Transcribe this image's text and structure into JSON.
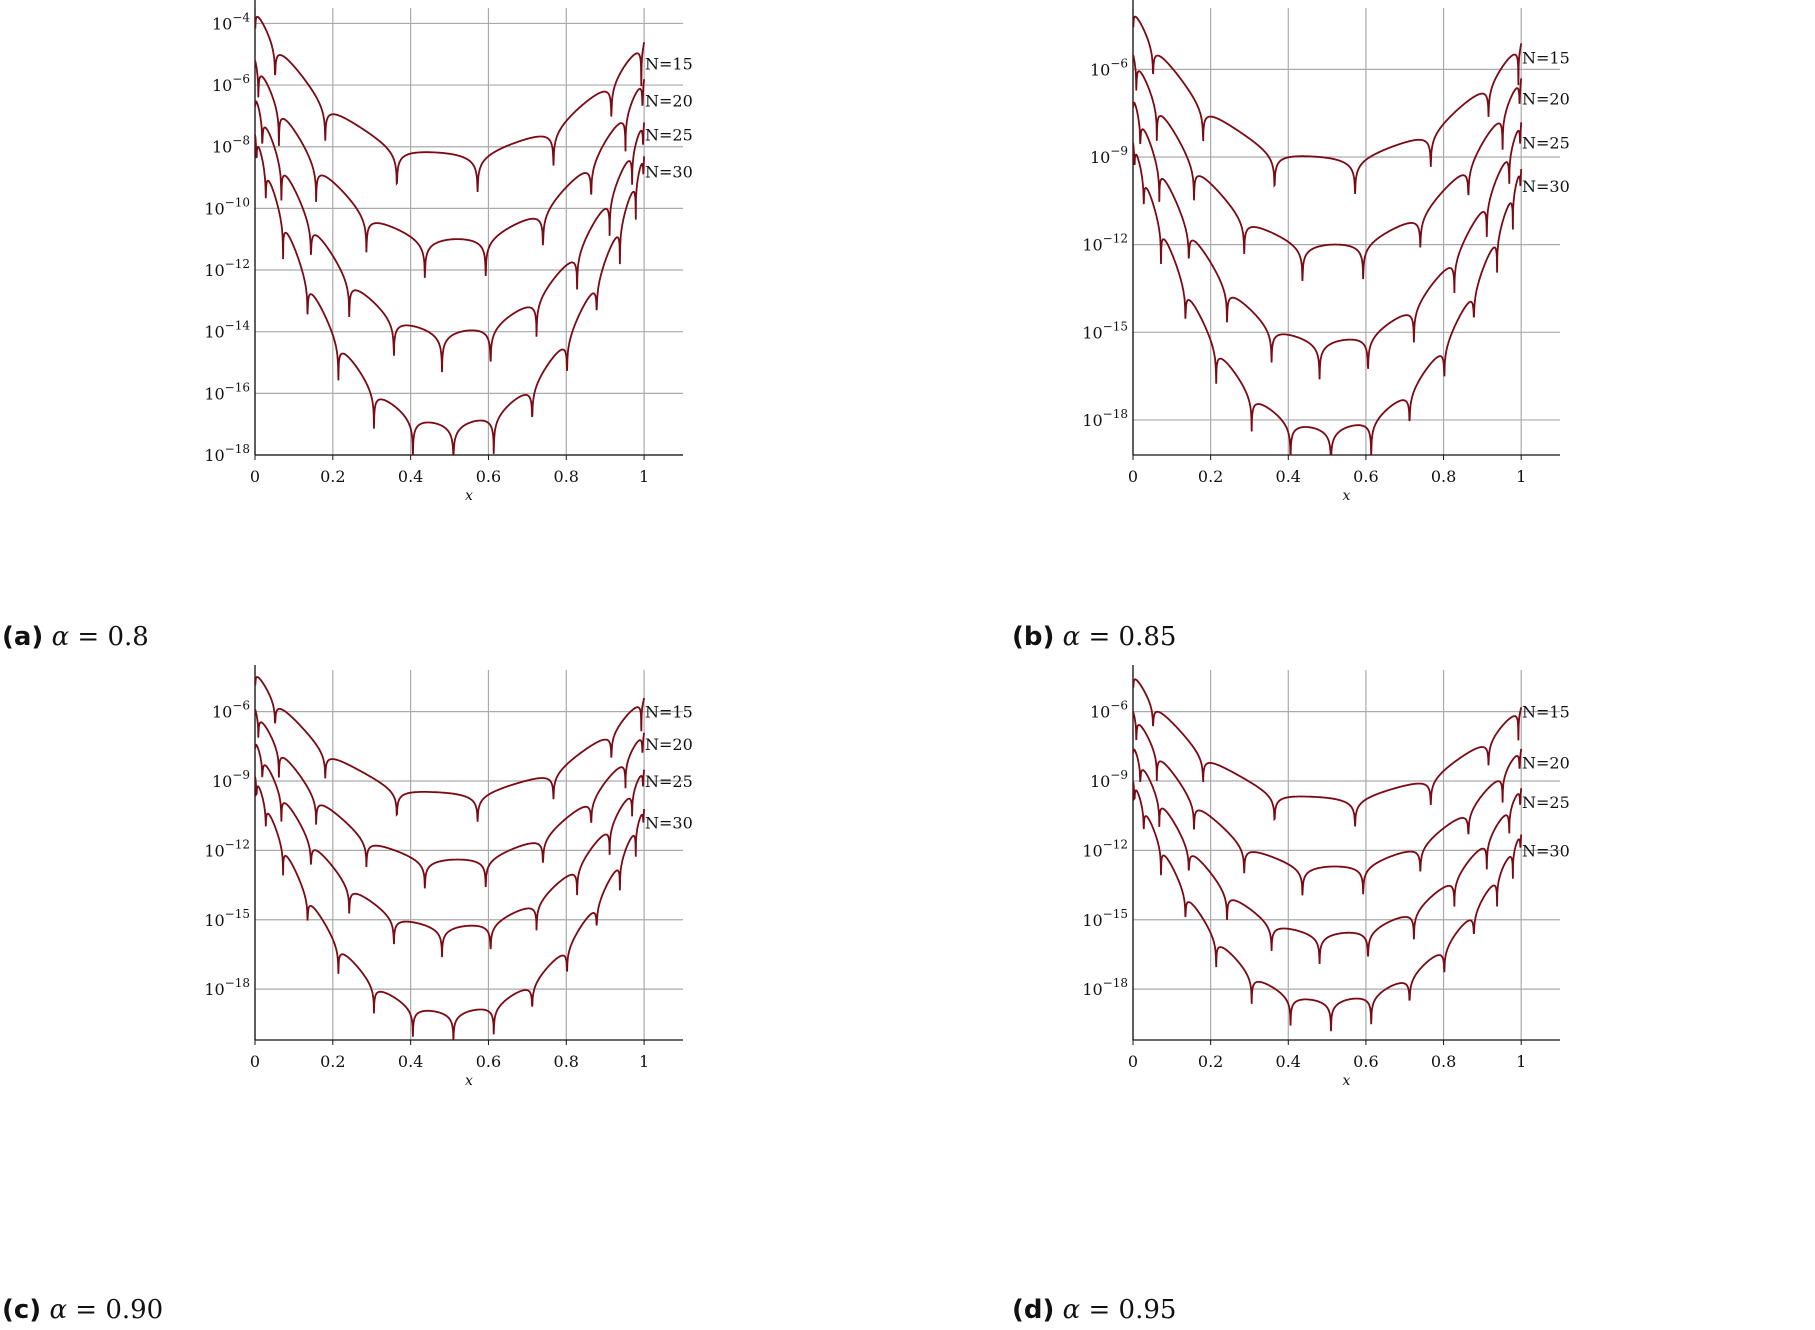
{
  "chart_data": [
    {
      "type": "line",
      "caption_letter": "(a)",
      "caption_symbol": "α",
      "caption_value": "= 0.8",
      "xlabel": "x",
      "xlim": [
        0,
        1.1
      ],
      "yscale": "log",
      "ylim_log10": [
        -18,
        -3.5
      ],
      "xticks": [
        "0",
        "0.2",
        "0.4",
        "0.6",
        "0.8",
        "1"
      ],
      "yticks": [
        {
          "base": "10",
          "exp": "−4",
          "log10": -4
        },
        {
          "base": "10",
          "exp": "−6",
          "log10": -6
        },
        {
          "base": "10",
          "exp": "−8",
          "log10": -8
        },
        {
          "base": "10",
          "exp": "−10",
          "log10": -10
        },
        {
          "base": "10",
          "exp": "−12",
          "log10": -12
        },
        {
          "base": "10",
          "exp": "−14",
          "log10": -14
        },
        {
          "base": "10",
          "exp": "−16",
          "log10": -16
        },
        {
          "base": "10",
          "exp": "−18",
          "log10": -18
        }
      ],
      "grid": true,
      "line_color": "#7a0a14",
      "series": [
        {
          "label": "N=15",
          "n": 15,
          "label_log10": -5.3,
          "start_log10": -3.6,
          "floor_log10": -8.2,
          "end_log10": -4.6
        },
        {
          "label": "N=20",
          "n": 20,
          "label_log10": -6.5,
          "start_log10": -5.2,
          "floor_log10": -11.0,
          "end_log10": -5.8
        },
        {
          "label": "N=25",
          "n": 25,
          "label_log10": -7.6,
          "start_log10": -6.4,
          "floor_log10": -14.0,
          "end_log10": -7.2
        },
        {
          "label": "N=30",
          "n": 30,
          "label_log10": -8.8,
          "start_log10": -7.6,
          "floor_log10": -17.0,
          "end_log10": -8.3
        }
      ]
    },
    {
      "type": "line",
      "caption_letter": "(b)",
      "caption_symbol": "α",
      "caption_value": "= 0.85",
      "xlabel": "x",
      "xlim": [
        0,
        1.1
      ],
      "yscale": "log",
      "ylim_log10": [
        -19.2,
        -3.9
      ],
      "xticks": [
        "0",
        "0.2",
        "0.4",
        "0.6",
        "0.8",
        "1"
      ],
      "yticks": [
        {
          "base": "10",
          "exp": "−6",
          "log10": -6
        },
        {
          "base": "10",
          "exp": "−9",
          "log10": -9
        },
        {
          "base": "10",
          "exp": "−12",
          "log10": -12
        },
        {
          "base": "10",
          "exp": "−15",
          "log10": -15
        },
        {
          "base": "10",
          "exp": "−18",
          "log10": -18
        }
      ],
      "grid": true,
      "line_color": "#7a0a14",
      "series": [
        {
          "label": "N=15",
          "n": 15,
          "label_log10": -5.6,
          "start_log10": -4.0,
          "floor_log10": -9.0,
          "end_log10": -5.1
        },
        {
          "label": "N=20",
          "n": 20,
          "label_log10": -7.0,
          "start_log10": -5.5,
          "floor_log10": -12.0,
          "end_log10": -6.3
        },
        {
          "label": "N=25",
          "n": 25,
          "label_log10": -8.5,
          "start_log10": -7.0,
          "floor_log10": -15.3,
          "end_log10": -7.8
        },
        {
          "label": "N=30",
          "n": 30,
          "label_log10": -10.0,
          "start_log10": -8.5,
          "floor_log10": -18.3,
          "end_log10": -9.4
        }
      ]
    },
    {
      "type": "line",
      "caption_letter": "(c)",
      "caption_symbol": "α",
      "caption_value": "= 0.90",
      "xlabel": "x",
      "xlim": [
        0,
        1.1
      ],
      "yscale": "log",
      "ylim_log10": [
        -20.2,
        -4.2
      ],
      "xticks": [
        "0",
        "0.2",
        "0.4",
        "0.6",
        "0.8",
        "1"
      ],
      "yticks": [
        {
          "base": "10",
          "exp": "−6",
          "log10": -6
        },
        {
          "base": "10",
          "exp": "−9",
          "log10": -9
        },
        {
          "base": "10",
          "exp": "−12",
          "log10": -12
        },
        {
          "base": "10",
          "exp": "−15",
          "log10": -15
        },
        {
          "base": "10",
          "exp": "−18",
          "log10": -18
        }
      ],
      "grid": true,
      "line_color": "#7a0a14",
      "series": [
        {
          "label": "N=15",
          "n": 15,
          "label_log10": -6.0,
          "start_log10": -4.3,
          "floor_log10": -9.5,
          "end_log10": -5.4
        },
        {
          "label": "N=20",
          "n": 20,
          "label_log10": -7.4,
          "start_log10": -5.9,
          "floor_log10": -12.4,
          "end_log10": -6.9
        },
        {
          "label": "N=25",
          "n": 25,
          "label_log10": -9.0,
          "start_log10": -7.3,
          "floor_log10": -15.3,
          "end_log10": -8.5
        },
        {
          "label": "N=30",
          "n": 30,
          "label_log10": -10.8,
          "start_log10": -8.8,
          "floor_log10": -19.0,
          "end_log10": -10.2
        }
      ]
    },
    {
      "type": "line",
      "caption_letter": "(d)",
      "caption_symbol": "α",
      "caption_value": "= 0.95",
      "xlabel": "x",
      "xlim": [
        0,
        1.1
      ],
      "yscale": "log",
      "ylim_log10": [
        -20.2,
        -4.2
      ],
      "xticks": [
        "0",
        "0.2",
        "0.4",
        "0.6",
        "0.8",
        "1"
      ],
      "yticks": [
        {
          "base": "10",
          "exp": "−6",
          "log10": -6
        },
        {
          "base": "10",
          "exp": "−9",
          "log10": -9
        },
        {
          "base": "10",
          "exp": "−12",
          "log10": -12
        },
        {
          "base": "10",
          "exp": "−15",
          "log10": -15
        },
        {
          "base": "10",
          "exp": "−18",
          "log10": -18
        }
      ],
      "grid": true,
      "line_color": "#7a0a14",
      "series": [
        {
          "label": "N=15",
          "n": 15,
          "label_log10": -6.0,
          "start_log10": -4.4,
          "floor_log10": -9.7,
          "end_log10": -5.8
        },
        {
          "label": "N=20",
          "n": 20,
          "label_log10": -8.2,
          "start_log10": -6.0,
          "floor_log10": -12.7,
          "end_log10": -7.6
        },
        {
          "label": "N=25",
          "n": 25,
          "label_log10": -9.9,
          "start_log10": -7.5,
          "floor_log10": -15.6,
          "end_log10": -9.3
        },
        {
          "label": "N=30",
          "n": 30,
          "label_log10": -12.0,
          "start_log10": -9.0,
          "floor_log10": -18.5,
          "end_log10": -11.3
        }
      ]
    }
  ]
}
